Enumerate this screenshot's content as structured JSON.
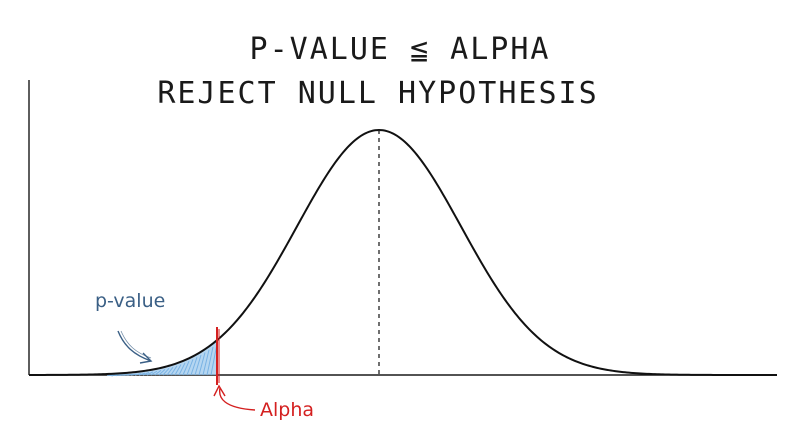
{
  "title": {
    "line1": "P-VALUE ≦ ALPHA",
    "line2": "REJECT NULL HYPOTHESIS"
  },
  "annotations": {
    "pvalue_label": "p-value",
    "alpha_label": "Alpha"
  },
  "colors": {
    "curve": "#111111",
    "axis": "#1a1a1a",
    "pvalue_fill": "#9cc8ec",
    "pvalue_text": "#3a5f85",
    "alpha": "#d42020"
  }
}
